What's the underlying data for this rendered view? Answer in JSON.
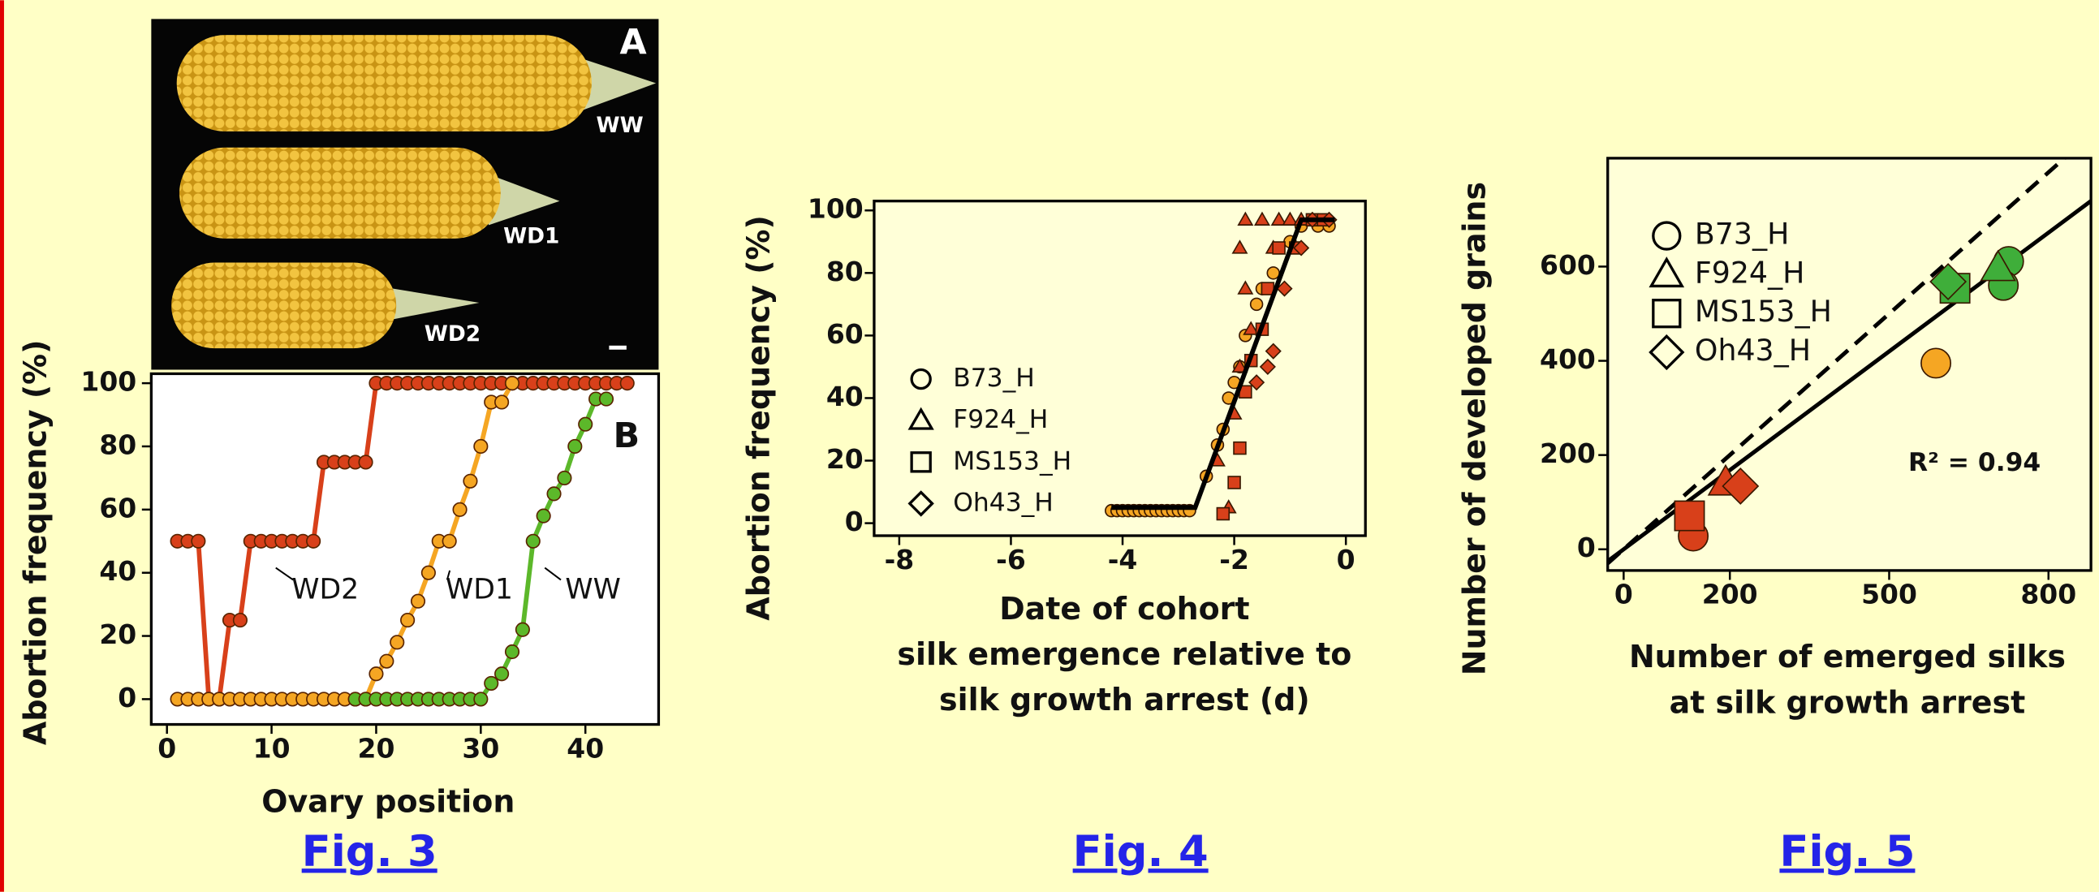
{
  "photo": {
    "panel": "A",
    "labels": [
      "WW",
      "WD1",
      "WD2"
    ]
  },
  "chart_data": [
    {
      "type": "line",
      "panel": "B",
      "caption": "Fig. 3",
      "x_label": "Ovary position",
      "y_label": "Abortion frequency (%)",
      "xlim": [
        -1.5,
        47
      ],
      "ylim": [
        -8,
        103
      ],
      "xticks": [
        0,
        10,
        20,
        30,
        40
      ],
      "yticks": [
        0,
        20,
        40,
        60,
        80,
        100
      ],
      "series": [
        {
          "name": "WD2",
          "color": "#d8401a",
          "x": [
            1,
            2,
            3,
            4,
            5,
            6,
            7,
            8,
            9,
            10,
            11,
            12,
            13,
            14,
            15,
            16,
            17,
            18,
            19,
            20,
            21,
            22,
            23,
            24,
            25,
            26,
            27,
            28,
            29,
            30,
            31,
            32,
            33,
            34,
            35,
            36,
            37,
            38,
            39,
            40,
            41,
            42,
            43,
            44
          ],
          "values": [
            50,
            50,
            50,
            0,
            0,
            25,
            25,
            50,
            50,
            50,
            50,
            50,
            50,
            50,
            75,
            75,
            75,
            75,
            75,
            100,
            100,
            100,
            100,
            100,
            100,
            100,
            100,
            100,
            100,
            100,
            100,
            100,
            100,
            100,
            100,
            100,
            100,
            100,
            100,
            100,
            100,
            100,
            100,
            100
          ]
        },
        {
          "name": "WD1",
          "color": "#f5a623",
          "x": [
            1,
            2,
            3,
            4,
            5,
            6,
            7,
            8,
            9,
            10,
            11,
            12,
            13,
            14,
            15,
            16,
            17,
            18,
            19,
            20,
            21,
            22,
            23,
            24,
            25,
            26,
            27,
            28,
            29,
            30,
            31,
            32,
            33
          ],
          "values": [
            0,
            0,
            0,
            0,
            0,
            0,
            0,
            0,
            0,
            0,
            0,
            0,
            0,
            0,
            0,
            0,
            0,
            0,
            0,
            8,
            12,
            18,
            25,
            31,
            40,
            50,
            50,
            60,
            69,
            80,
            94,
            94,
            100
          ]
        },
        {
          "name": "WW",
          "color": "#5cb82a",
          "x": [
            18,
            19,
            20,
            21,
            22,
            23,
            24,
            25,
            26,
            27,
            28,
            29,
            30,
            31,
            32,
            33,
            34,
            35,
            36,
            37,
            38,
            39,
            40,
            41,
            42
          ],
          "values": [
            0,
            0,
            0,
            0,
            0,
            0,
            0,
            0,
            0,
            0,
            0,
            0,
            0,
            5,
            8,
            15,
            22,
            50,
            58,
            65,
            70,
            80,
            87,
            95,
            95
          ]
        }
      ]
    },
    {
      "type": "scatter",
      "caption": "Fig. 4",
      "x_label": [
        "Date of cohort",
        "silk emergence relative to",
        "silk growth arrest (d)"
      ],
      "y_label": "Abortion frequency (%)",
      "xlim": [
        -8.45,
        0.35
      ],
      "ylim": [
        -4,
        103
      ],
      "xticks": [
        -8,
        -6,
        -4,
        -2,
        0
      ],
      "yticks": [
        0,
        20,
        40,
        60,
        80,
        100
      ],
      "legend": true,
      "series": [
        {
          "name": "B73_H",
          "marker": "circle",
          "color": "#f5a623",
          "x": [
            -4.2,
            -4.1,
            -4.0,
            -3.9,
            -3.8,
            -3.7,
            -3.6,
            -3.5,
            -3.4,
            -3.3,
            -3.2,
            -3.1,
            -3.0,
            -2.9,
            -2.8,
            -2.5,
            -2.3,
            -2.2,
            -2.1,
            -2.0,
            -1.9,
            -1.8,
            -1.6,
            -1.5,
            -1.3,
            -1.0,
            -0.8,
            -0.5,
            -0.3
          ],
          "values": [
            4,
            4,
            4,
            4,
            4,
            4,
            4,
            4,
            4,
            4,
            4,
            4,
            4,
            4,
            4,
            15,
            25,
            30,
            40,
            45,
            50,
            60,
            70,
            75,
            80,
            90,
            95,
            95,
            95
          ]
        },
        {
          "name": "F924_H",
          "marker": "triangle",
          "color": "#d8401a",
          "x": [
            -2.1,
            -2.3,
            -2.0,
            -1.9,
            -1.7,
            -1.8,
            -1.9,
            -1.8,
            -1.5,
            -1.3,
            -1.2,
            -1.0,
            -0.8
          ],
          "values": [
            5,
            20,
            35,
            50,
            62,
            75,
            88,
            97,
            97,
            88,
            97,
            97,
            97
          ]
        },
        {
          "name": "MS153_H",
          "marker": "square",
          "color": "#d8401a",
          "x": [
            -2.2,
            -2.0,
            -1.9,
            -1.8,
            -1.7,
            -1.5,
            -1.4,
            -1.2,
            -0.9,
            -0.6,
            -0.4
          ],
          "values": [
            3,
            13,
            24,
            42,
            52,
            62,
            75,
            88,
            88,
            97,
            97
          ]
        },
        {
          "name": "Oh43_H",
          "marker": "diamond",
          "color": "#d8401a",
          "x": [
            -1.6,
            -1.4,
            -1.3,
            -1.1,
            -0.8,
            -0.6,
            -0.3
          ],
          "values": [
            45,
            50,
            55,
            75,
            88,
            97,
            97
          ]
        }
      ],
      "fit_line": {
        "x": [
          -4.2,
          -2.7,
          -0.8,
          -0.2
        ],
        "values": [
          5,
          5,
          97,
          97
        ]
      }
    },
    {
      "type": "scatter",
      "caption": "Fig. 5",
      "x_label": [
        "Number of emerged silks",
        "at silk growth arrest"
      ],
      "y_label": "Number of developed grains",
      "xlim": [
        -30,
        880
      ],
      "ylim": [
        -45,
        830
      ],
      "xticks": [
        0,
        200,
        500,
        800
      ],
      "yticks": [
        0,
        200,
        400,
        600
      ],
      "legend": true,
      "annotation": "R² = 0.94",
      "series": [
        {
          "name": "B73_H",
          "marker": "circle",
          "x": [
            131,
            588,
            725,
            715
          ],
          "values": [
            28,
            395,
            611,
            560
          ],
          "colors": [
            "#d8401a",
            "#f5a623",
            "#3fae3a",
            "#3fae3a"
          ]
        },
        {
          "name": "F924_H",
          "marker": "triangle",
          "x": [
            192,
            705
          ],
          "values": [
            142,
            597
          ],
          "colors": [
            "#d8401a",
            "#3fae3a"
          ]
        },
        {
          "name": "MS153_H",
          "marker": "square",
          "x": [
            124,
            624
          ],
          "values": [
            71,
            554
          ],
          "colors": [
            "#d8401a",
            "#3fae3a"
          ]
        },
        {
          "name": "Oh43_H",
          "marker": "diamond",
          "x": [
            220,
            611
          ],
          "values": [
            134,
            568
          ],
          "colors": [
            "#d8401a",
            "#3fae3a"
          ]
        }
      ],
      "reference_lines": [
        {
          "slope": 1,
          "intercept": 0,
          "style": "dashed"
        },
        {
          "slope": 0.84,
          "intercept": 0,
          "style": "solid"
        }
      ]
    }
  ]
}
